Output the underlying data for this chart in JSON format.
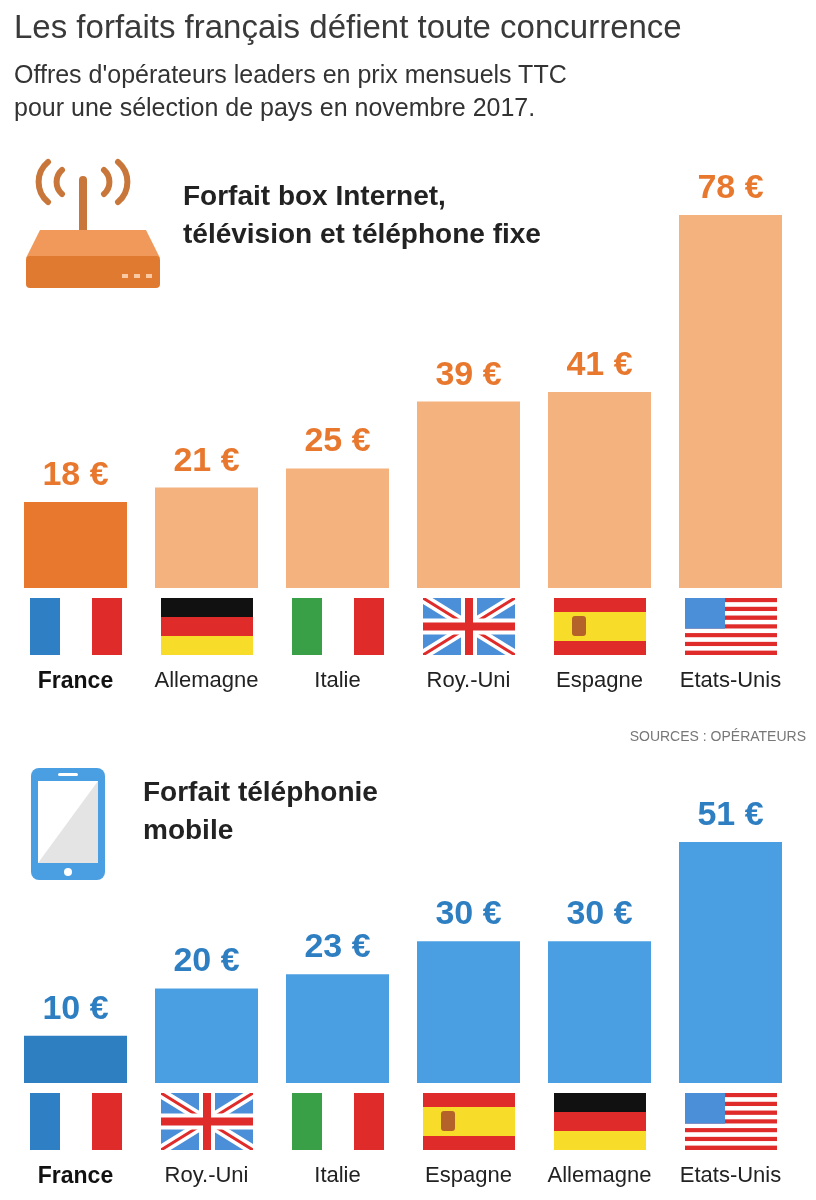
{
  "chart_data": [
    {
      "type": "other",
      "title": "Les forfaits français défient toute concurrence",
      "subtitle": "Offres d'opérateurs leaders en prix mensuels TTC\npour une sélection de pays en novembre 2017."
    },
    {
      "type": "bar",
      "title": "Forfait box Internet,\ntélévision et téléphone fixe",
      "categories": [
        "France",
        "Allemagne",
        "Italie",
        "Roy.-Uni",
        "Espagne",
        "Etats-Unis"
      ],
      "values": [
        18,
        21,
        25,
        39,
        41,
        78
      ],
      "value_labels": [
        "18 €",
        "21 €",
        "25 €",
        "39 €",
        "41 €",
        "78 €"
      ],
      "colors": [
        "#e8782e",
        "#f4b27e",
        "#f4b27e",
        "#f4b27e",
        "#f4b27e",
        "#f4b27e"
      ],
      "annotations": [
        "SOURCES : OPÉRATEURS"
      ]
    },
    {
      "type": "bar",
      "title": "Forfait téléphonie\nmobile",
      "categories": [
        "France",
        "Roy.-Uni",
        "Italie",
        "Espagne",
        "Allemagne",
        "Etats-Unis"
      ],
      "values": [
        10,
        20,
        23,
        30,
        30,
        51
      ],
      "value_labels": [
        "10 €",
        "20 €",
        "23 €",
        "30 €",
        "30 €",
        "51 €"
      ],
      "colors": [
        "#2e7ec2",
        "#4a9fe2",
        "#4a9fe2",
        "#4a9fe2",
        "#4a9fe2",
        "#4a9fe2"
      ]
    }
  ]
}
